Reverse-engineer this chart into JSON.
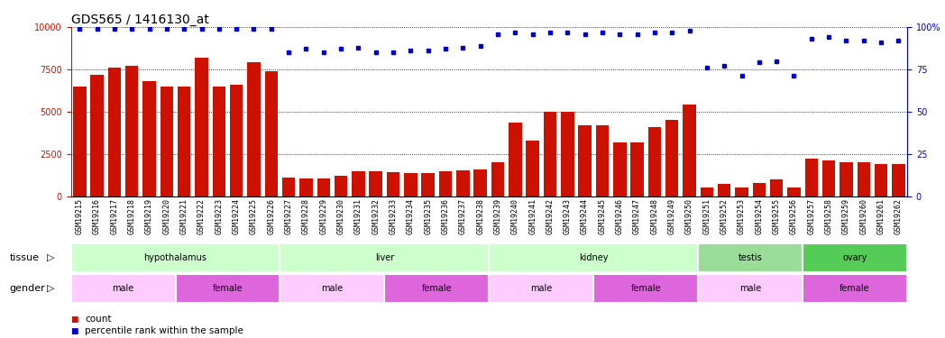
{
  "title": "GDS565 / 1416130_at",
  "samples": [
    "GSM19215",
    "GSM19216",
    "GSM19217",
    "GSM19218",
    "GSM19219",
    "GSM19220",
    "GSM19221",
    "GSM19222",
    "GSM19223",
    "GSM19224",
    "GSM19225",
    "GSM19226",
    "GSM19227",
    "GSM19228",
    "GSM19229",
    "GSM19230",
    "GSM19231",
    "GSM19232",
    "GSM19233",
    "GSM19234",
    "GSM19235",
    "GSM19236",
    "GSM19237",
    "GSM19238",
    "GSM19239",
    "GSM19240",
    "GSM19241",
    "GSM19242",
    "GSM19243",
    "GSM19244",
    "GSM19245",
    "GSM19246",
    "GSM19247",
    "GSM19248",
    "GSM19249",
    "GSM19250",
    "GSM19251",
    "GSM19252",
    "GSM19253",
    "GSM19254",
    "GSM19255",
    "GSM19256",
    "GSM19257",
    "GSM19258",
    "GSM19259",
    "GSM19260",
    "GSM19261",
    "GSM19262"
  ],
  "counts": [
    6500,
    7200,
    7600,
    7700,
    6800,
    6500,
    6500,
    8200,
    6500,
    6600,
    7900,
    7400,
    1100,
    1050,
    1050,
    1200,
    1450,
    1450,
    1400,
    1350,
    1350,
    1450,
    1500,
    1550,
    2000,
    4350,
    3300,
    5000,
    5000,
    4200,
    4200,
    3200,
    3200,
    4100,
    4500,
    5400,
    500,
    700,
    500,
    750,
    1000,
    500,
    2200,
    2100,
    2000,
    2000,
    1900,
    1900
  ],
  "percentile": [
    99,
    99,
    99,
    99,
    99,
    99,
    99,
    99,
    99,
    99,
    99,
    99,
    85,
    87,
    85,
    87,
    88,
    85,
    85,
    86,
    86,
    87,
    88,
    89,
    96,
    97,
    96,
    97,
    97,
    96,
    97,
    96,
    96,
    97,
    97,
    98,
    76,
    77,
    71,
    79,
    80,
    71,
    93,
    94,
    92,
    92,
    91,
    92
  ],
  "tissue_groups": [
    {
      "label": "hypothalamus",
      "start": 0,
      "end": 11,
      "color": "#ccffcc"
    },
    {
      "label": "liver",
      "start": 12,
      "end": 23,
      "color": "#ccffcc"
    },
    {
      "label": "kidney",
      "start": 24,
      "end": 35,
      "color": "#ccffcc"
    },
    {
      "label": "testis",
      "start": 36,
      "end": 41,
      "color": "#99dd99"
    },
    {
      "label": "ovary",
      "start": 42,
      "end": 47,
      "color": "#55cc55"
    }
  ],
  "gender_groups": [
    {
      "label": "male",
      "start": 0,
      "end": 5,
      "color": "#ffccff"
    },
    {
      "label": "female",
      "start": 6,
      "end": 11,
      "color": "#dd66dd"
    },
    {
      "label": "male",
      "start": 12,
      "end": 17,
      "color": "#ffccff"
    },
    {
      "label": "female",
      "start": 18,
      "end": 23,
      "color": "#dd66dd"
    },
    {
      "label": "male",
      "start": 24,
      "end": 29,
      "color": "#ffccff"
    },
    {
      "label": "female",
      "start": 30,
      "end": 35,
      "color": "#dd66dd"
    },
    {
      "label": "male",
      "start": 36,
      "end": 41,
      "color": "#ffccff"
    },
    {
      "label": "female",
      "start": 42,
      "end": 47,
      "color": "#dd66dd"
    }
  ],
  "bar_color": "#cc1100",
  "dot_color": "#0000cc",
  "y_max": 10000,
  "y_ticks": [
    0,
    2500,
    5000,
    7500,
    10000
  ],
  "y_right_ticks": [
    0,
    25,
    50,
    75,
    100
  ],
  "title_fontsize": 10,
  "tick_fontsize": 6,
  "label_fontsize": 8,
  "legend_fontsize": 7.5,
  "xtick_bg": "#dddddd"
}
